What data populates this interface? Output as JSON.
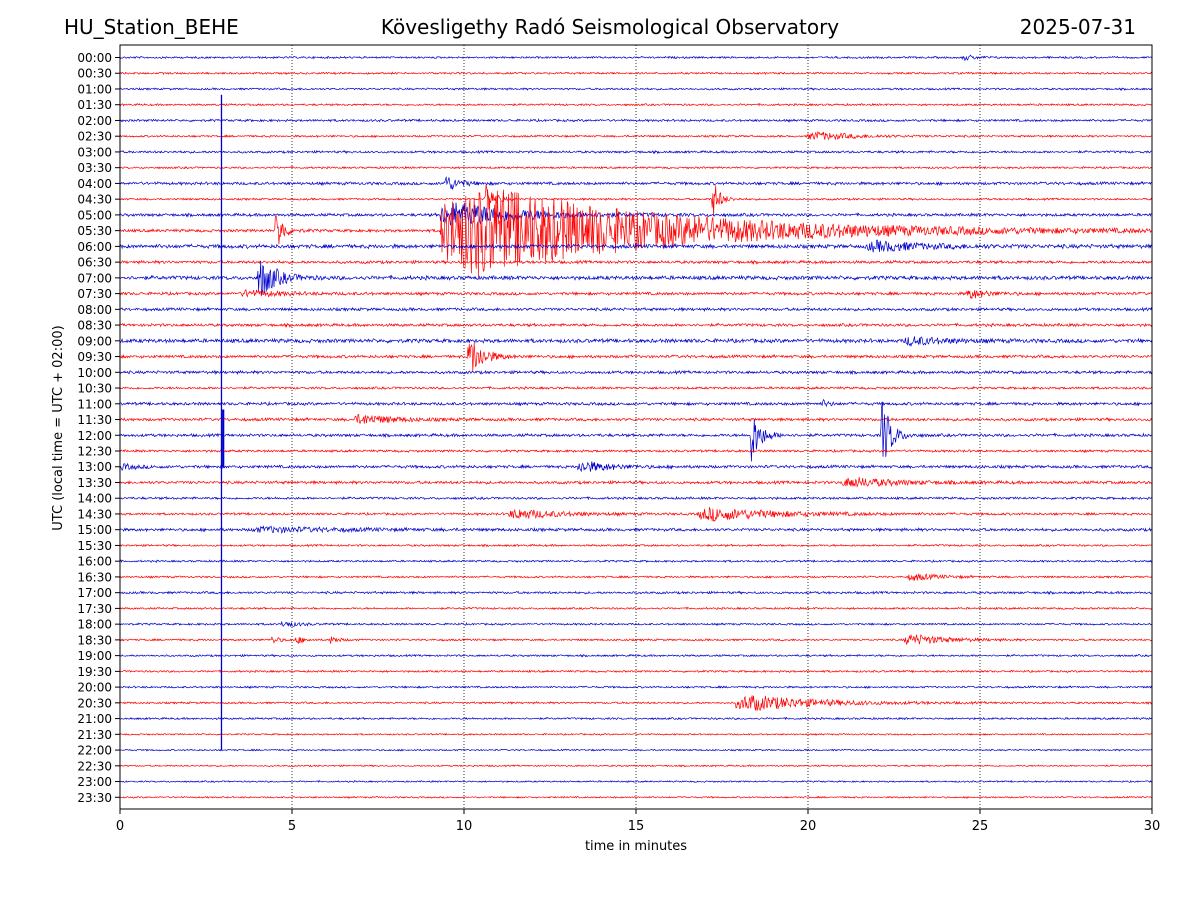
{
  "header": {
    "station": "HU_Station_BEHE",
    "title": "Kövesligethy Radó Seismological Observatory",
    "date": "2025-07-31"
  },
  "chart_data": {
    "type": "line",
    "title": "Kövesligethy Radó Seismological Observatory",
    "xlabel": "time in minutes",
    "ylabel": "UTC (local time = UTC + 02:00)",
    "xlim": [
      0,
      30
    ],
    "x_ticks": [
      0,
      5,
      10,
      15,
      20,
      25,
      30
    ],
    "grid": "vertical dotted at x ticks",
    "colors": {
      "even_rows": "#0000cc",
      "odd_rows": "#ff0000"
    },
    "rows": [
      {
        "label": "00:00",
        "amp": 1.0,
        "events": [
          {
            "t": 24.5,
            "amp": 3,
            "dur": 0.5
          }
        ]
      },
      {
        "label": "00:30",
        "amp": 1.0,
        "events": []
      },
      {
        "label": "01:00",
        "amp": 1.0,
        "events": []
      },
      {
        "label": "01:30",
        "amp": 1.0,
        "events": []
      },
      {
        "label": "02:00",
        "amp": 1.2,
        "events": []
      },
      {
        "label": "02:30",
        "amp": 1.0,
        "events": [
          {
            "t": 20.0,
            "amp": 5,
            "dur": 1.8
          }
        ]
      },
      {
        "label": "03:00",
        "amp": 1.2,
        "events": []
      },
      {
        "label": "03:30",
        "amp": 1.0,
        "events": []
      },
      {
        "label": "04:00",
        "amp": 1.5,
        "events": [
          {
            "t": 9.4,
            "amp": 10,
            "dur": 0.6
          }
        ]
      },
      {
        "label": "04:30",
        "amp": 1.0,
        "events": [
          {
            "t": 10.6,
            "amp": 25,
            "dur": 0.3
          },
          {
            "t": 17.2,
            "amp": 25,
            "dur": 0.3
          }
        ]
      },
      {
        "label": "05:00",
        "amp": 1.5,
        "events": [
          {
            "t": 9.3,
            "amp": 16,
            "dur": 3.0
          }
        ]
      },
      {
        "label": "05:30",
        "amp": 1.5,
        "events": [
          {
            "t": 4.5,
            "amp": 30,
            "dur": 0.3
          },
          {
            "t": 9.3,
            "amp": 60,
            "dur": 8.0
          }
        ]
      },
      {
        "label": "06:00",
        "amp": 2.0,
        "events": [
          {
            "t": 21.7,
            "amp": 6,
            "dur": 2.2
          }
        ]
      },
      {
        "label": "06:30",
        "amp": 1.5,
        "events": []
      },
      {
        "label": "07:00",
        "amp": 2.0,
        "events": [
          {
            "t": 4.0,
            "amp": 25,
            "dur": 0.7
          }
        ]
      },
      {
        "label": "07:30",
        "amp": 1.5,
        "events": [
          {
            "t": 3.5,
            "amp": 4,
            "dur": 1.5
          },
          {
            "t": 24.6,
            "amp": 6,
            "dur": 0.8
          }
        ]
      },
      {
        "label": "08:00",
        "amp": 1.5,
        "events": []
      },
      {
        "label": "08:30",
        "amp": 1.5,
        "events": []
      },
      {
        "label": "09:00",
        "amp": 2.0,
        "events": [
          {
            "t": 22.8,
            "amp": 5,
            "dur": 1.5
          }
        ]
      },
      {
        "label": "09:30",
        "amp": 1.5,
        "events": [
          {
            "t": 10.1,
            "amp": 25,
            "dur": 0.6
          }
        ]
      },
      {
        "label": "10:00",
        "amp": 1.5,
        "events": []
      },
      {
        "label": "10:30",
        "amp": 1.2,
        "events": []
      },
      {
        "label": "11:00",
        "amp": 1.5,
        "events": [
          {
            "t": 20.4,
            "amp": 4,
            "dur": 0.3
          }
        ]
      },
      {
        "label": "11:30",
        "amp": 1.5,
        "events": [
          {
            "t": 6.8,
            "amp": 6,
            "dur": 1.5
          }
        ]
      },
      {
        "label": "12:00",
        "amp": 1.5,
        "events": [
          {
            "t": 18.3,
            "amp": 35,
            "dur": 0.4
          },
          {
            "t": 22.1,
            "amp": 45,
            "dur": 0.4
          }
        ]
      },
      {
        "label": "12:30",
        "amp": 1.2,
        "events": []
      },
      {
        "label": "13:00",
        "amp": 1.5,
        "events": [
          {
            "t": 0.0,
            "amp": 3,
            "dur": 0.7
          },
          {
            "t": 13.3,
            "amp": 7,
            "dur": 1.2
          }
        ]
      },
      {
        "label": "13:30",
        "amp": 1.5,
        "events": [
          {
            "t": 21.0,
            "amp": 6,
            "dur": 2.0
          }
        ]
      },
      {
        "label": "14:00",
        "amp": 1.2,
        "events": []
      },
      {
        "label": "14:30",
        "amp": 1.2,
        "events": [
          {
            "t": 11.3,
            "amp": 6,
            "dur": 2.0
          },
          {
            "t": 16.8,
            "amp": 8,
            "dur": 3.0
          }
        ]
      },
      {
        "label": "15:00",
        "amp": 1.5,
        "events": [
          {
            "t": 3.8,
            "amp": 3,
            "dur": 3.5
          }
        ]
      },
      {
        "label": "15:30",
        "amp": 1.0,
        "events": []
      },
      {
        "label": "16:00",
        "amp": 1.0,
        "events": []
      },
      {
        "label": "16:30",
        "amp": 1.0,
        "events": [
          {
            "t": 22.9,
            "amp": 4,
            "dur": 1.2
          }
        ]
      },
      {
        "label": "17:00",
        "amp": 1.2,
        "events": []
      },
      {
        "label": "17:30",
        "amp": 1.0,
        "events": []
      },
      {
        "label": "18:00",
        "amp": 1.0,
        "events": [
          {
            "t": 4.7,
            "amp": 4,
            "dur": 0.6
          }
        ]
      },
      {
        "label": "18:30",
        "amp": 1.0,
        "events": [
          {
            "t": 4.4,
            "amp": 5,
            "dur": 0.3
          },
          {
            "t": 5.1,
            "amp": 5,
            "dur": 0.3
          },
          {
            "t": 6.1,
            "amp": 5,
            "dur": 0.3
          },
          {
            "t": 22.8,
            "amp": 7,
            "dur": 1.5
          }
        ]
      },
      {
        "label": "19:00",
        "amp": 1.0,
        "events": []
      },
      {
        "label": "19:30",
        "amp": 1.0,
        "events": []
      },
      {
        "label": "20:00",
        "amp": 1.0,
        "events": []
      },
      {
        "label": "20:30",
        "amp": 1.0,
        "events": [
          {
            "t": 17.9,
            "amp": 10,
            "dur": 3.0
          }
        ]
      },
      {
        "label": "21:00",
        "amp": 1.0,
        "events": []
      },
      {
        "label": "21:30",
        "amp": 0.8,
        "events": []
      },
      {
        "label": "22:00",
        "amp": 0.8,
        "events": []
      },
      {
        "label": "22:30",
        "amp": 0.8,
        "events": []
      },
      {
        "label": "23:00",
        "amp": 0.8,
        "events": []
      },
      {
        "label": "23:30",
        "amp": 0.8,
        "events": []
      }
    ],
    "vertical_artifacts": [
      {
        "t": 2.95,
        "from_row": 3,
        "to_row": 44,
        "color": "#0000cc"
      },
      {
        "t": 3.0,
        "from_row": 23,
        "to_row": 26,
        "color": "#0000cc"
      }
    ]
  }
}
